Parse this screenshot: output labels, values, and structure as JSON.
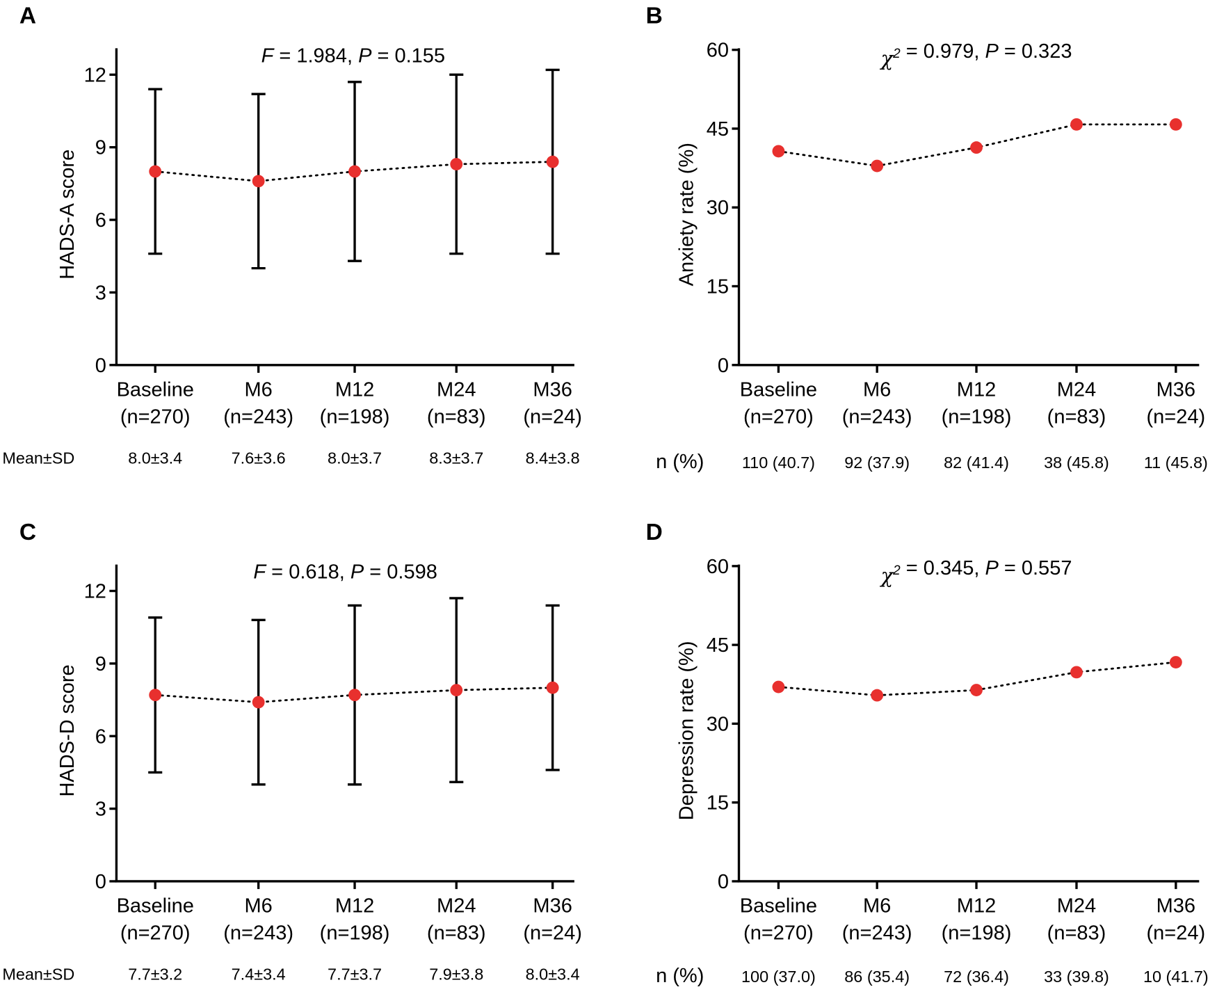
{
  "colors": {
    "point": "#e8302e",
    "axis": "#000000"
  },
  "chart_data": [
    {
      "panel": "A",
      "type": "line",
      "error_bars": "sd",
      "ylabel": "HADS-A score",
      "ylim": [
        0,
        13
      ],
      "yticks": [
        0,
        3,
        6,
        9,
        12
      ],
      "stat": {
        "name": "F",
        "value": "1.984",
        "p": "0.155"
      },
      "categories": [
        "Baseline",
        "M6",
        "M12",
        "M24",
        "M36"
      ],
      "n_labels": [
        "(n=270)",
        "(n=243)",
        "(n=198)",
        "(n=83)",
        "(n=24)"
      ],
      "values": [
        8.0,
        7.6,
        8.0,
        8.3,
        8.4
      ],
      "sd": [
        3.4,
        3.6,
        3.7,
        3.7,
        3.8
      ],
      "row_label": "Mean±SD",
      "row_values": [
        "8.0±3.4",
        "7.6±3.6",
        "8.0±3.7",
        "8.3±3.7",
        "8.4±3.8"
      ]
    },
    {
      "panel": "B",
      "type": "line",
      "ylabel": "Anxiety rate (%)",
      "ylim": [
        0,
        60
      ],
      "yticks": [
        0,
        15,
        30,
        45,
        60
      ],
      "stat": {
        "name": "χ2",
        "value": "0.979",
        "p": "0.323"
      },
      "categories": [
        "Baseline",
        "M6",
        "M12",
        "M24",
        "M36"
      ],
      "n_labels": [
        "(n=270)",
        "(n=243)",
        "(n=198)",
        "(n=83)",
        "(n=24)"
      ],
      "values": [
        40.7,
        37.9,
        41.4,
        45.8,
        45.8
      ],
      "row_label": "n (%)",
      "row_values": [
        "110 (40.7)",
        "92 (37.9)",
        "82 (41.4)",
        "38 (45.8)",
        "11 (45.8)"
      ]
    },
    {
      "panel": "C",
      "type": "line",
      "error_bars": "sd",
      "ylabel": "HADS-D score",
      "ylim": [
        0,
        13
      ],
      "yticks": [
        0,
        3,
        6,
        9,
        12
      ],
      "stat": {
        "name": "F",
        "value": "0.618",
        "p": "0.598"
      },
      "categories": [
        "Baseline",
        "M6",
        "M12",
        "M24",
        "M36"
      ],
      "n_labels": [
        "(n=270)",
        "(n=243)",
        "(n=198)",
        "(n=83)",
        "(n=24)"
      ],
      "values": [
        7.7,
        7.4,
        7.7,
        7.9,
        8.0
      ],
      "sd": [
        3.2,
        3.4,
        3.7,
        3.8,
        3.4
      ],
      "row_label": "Mean±SD",
      "row_values": [
        "7.7±3.2",
        "7.4±3.4",
        "7.7±3.7",
        "7.9±3.8",
        "8.0±3.4"
      ]
    },
    {
      "panel": "D",
      "type": "line",
      "ylabel": "Depression rate (%)",
      "ylim": [
        0,
        60
      ],
      "yticks": [
        0,
        15,
        30,
        45,
        60
      ],
      "stat": {
        "name": "χ2",
        "value": "0.345",
        "p": "0.557"
      },
      "categories": [
        "Baseline",
        "M6",
        "M12",
        "M24",
        "M36"
      ],
      "n_labels": [
        "(n=270)",
        "(n=243)",
        "(n=198)",
        "(n=83)",
        "(n=24)"
      ],
      "values": [
        37.0,
        35.4,
        36.4,
        39.8,
        41.7
      ],
      "row_label": "n (%)",
      "row_values": [
        "100 (37.0)",
        "86 (35.4)",
        "72 (36.4)",
        "33 (39.8)",
        "10 (41.7)"
      ]
    }
  ]
}
